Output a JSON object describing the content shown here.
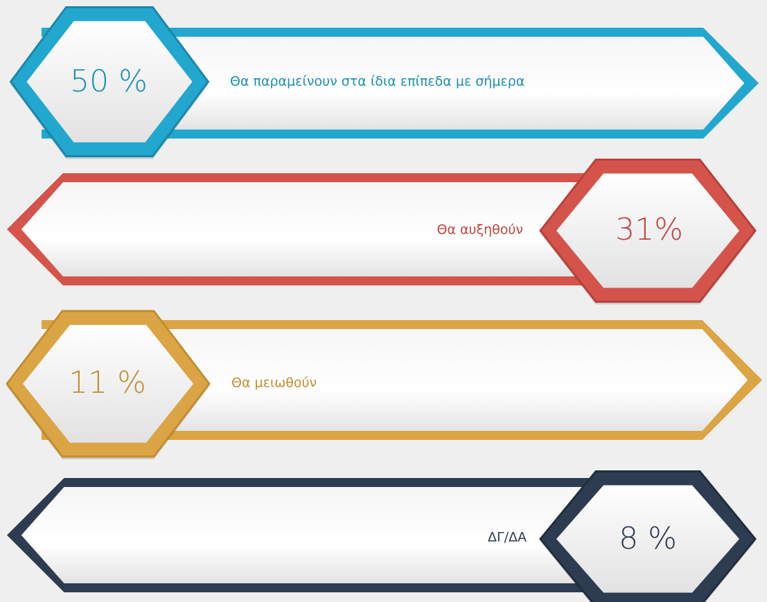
{
  "items": [
    {
      "value_label": "50 %",
      "label": "Θα παραμείνουν στα ίδια επίπεδα με σήμερα"
    },
    {
      "value_label": "31%",
      "label": "Θα αυξηθούν"
    },
    {
      "value_label": "11 %",
      "label": "Θα μειωθούν"
    },
    {
      "value_label": "8 %",
      "label": "ΔΓ/ΔΑ"
    }
  ]
}
